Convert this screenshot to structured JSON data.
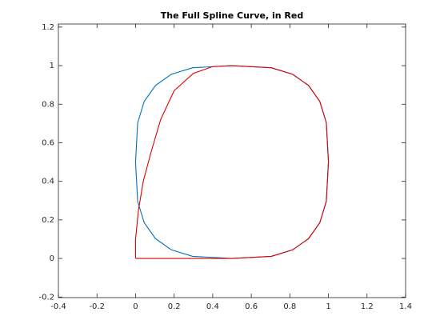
{
  "chart_data": {
    "type": "line",
    "title": "The Full Spline Curve, in Red",
    "xlim": [
      -0.4,
      1.4
    ],
    "xticks": [
      -0.4,
      -0.2,
      0,
      0.2,
      0.4,
      0.6,
      0.8,
      1,
      1.2,
      1.4
    ],
    "ylim": [
      -0.203,
      1.216
    ],
    "yticks": [
      -0.2,
      0,
      0.2,
      0.4,
      0.6,
      0.8,
      1,
      1.2
    ],
    "grid": false,
    "series": [
      {
        "color": "#0072bd",
        "x": [
          1,
          0.989,
          0.955,
          0.897,
          0.815,
          0.704,
          0.5,
          0.296,
          0.185,
          0.103,
          0.045,
          0.011,
          0,
          0.011,
          0.045,
          0.103,
          0.185,
          0.296,
          0.5,
          0.704,
          0.815,
          0.897,
          0.955,
          0.989,
          1
        ],
        "values": [
          0.5,
          0.704,
          0.815,
          0.897,
          0.955,
          0.989,
          1,
          0.989,
          0.955,
          0.897,
          0.815,
          0.704,
          0.5,
          0.296,
          0.185,
          0.103,
          0.045,
          0.011,
          0,
          0.011,
          0.045,
          0.103,
          0.185,
          0.296,
          0.5
        ]
      },
      {
        "color": "#e00000",
        "x": [
          0,
          0.45,
          0.5,
          0.704,
          0.815,
          0.897,
          0.955,
          0.989,
          1,
          0.989,
          0.955,
          0.897,
          0.815,
          0.704,
          0.5,
          0.4,
          0.3,
          0.2,
          0.13,
          0.08,
          0.04,
          0.015,
          0,
          0
        ],
        "values": [
          0,
          0,
          0,
          0.011,
          0.045,
          0.103,
          0.185,
          0.296,
          0.5,
          0.704,
          0.815,
          0.897,
          0.955,
          0.989,
          1,
          0.995,
          0.96,
          0.87,
          0.72,
          0.55,
          0.4,
          0.25,
          0.1,
          0
        ]
      }
    ]
  }
}
